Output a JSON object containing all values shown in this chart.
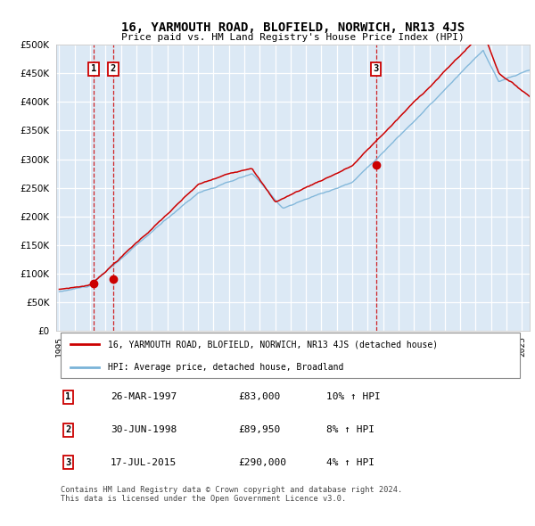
{
  "title": "16, YARMOUTH ROAD, BLOFIELD, NORWICH, NR13 4JS",
  "subtitle": "Price paid vs. HM Land Registry's House Price Index (HPI)",
  "ylim": [
    0,
    500000
  ],
  "yticks": [
    0,
    50000,
    100000,
    150000,
    200000,
    250000,
    300000,
    350000,
    400000,
    450000,
    500000
  ],
  "xlim_start": 1994.8,
  "xlim_end": 2025.5,
  "plot_bg_color": "#dce9f5",
  "grid_color": "#ffffff",
  "hpi_line_color": "#7ab3d8",
  "price_line_color": "#cc0000",
  "sale_marker_color": "#cc0000",
  "vline_color": "#cc0000",
  "legend_border_color": "#cc0000",
  "sale_points": [
    {
      "year": 1997.23,
      "price": 83000,
      "label": "1"
    },
    {
      "year": 1998.49,
      "price": 89950,
      "label": "2"
    },
    {
      "year": 2015.54,
      "price": 290000,
      "label": "3"
    }
  ],
  "vline_years": [
    1997.23,
    1998.49,
    2015.54
  ],
  "table_rows": [
    {
      "num": "1",
      "date": "26-MAR-1997",
      "price": "£83,000",
      "change": "10% ↑ HPI"
    },
    {
      "num": "2",
      "date": "30-JUN-1998",
      "price": "£89,950",
      "change": "8% ↑ HPI"
    },
    {
      "num": "3",
      "date": "17-JUL-2015",
      "price": "£290,000",
      "change": "4% ↑ HPI"
    }
  ],
  "legend_line1": "16, YARMOUTH ROAD, BLOFIELD, NORWICH, NR13 4JS (detached house)",
  "legend_line2": "HPI: Average price, detached house, Broadland",
  "footer": "Contains HM Land Registry data © Crown copyright and database right 2024.\nThis data is licensed under the Open Government Licence v3.0.",
  "box_label_positions": [
    {
      "year": 1997.23,
      "label": "1"
    },
    {
      "year": 1998.49,
      "label": "2"
    },
    {
      "year": 2015.54,
      "label": "3"
    }
  ]
}
